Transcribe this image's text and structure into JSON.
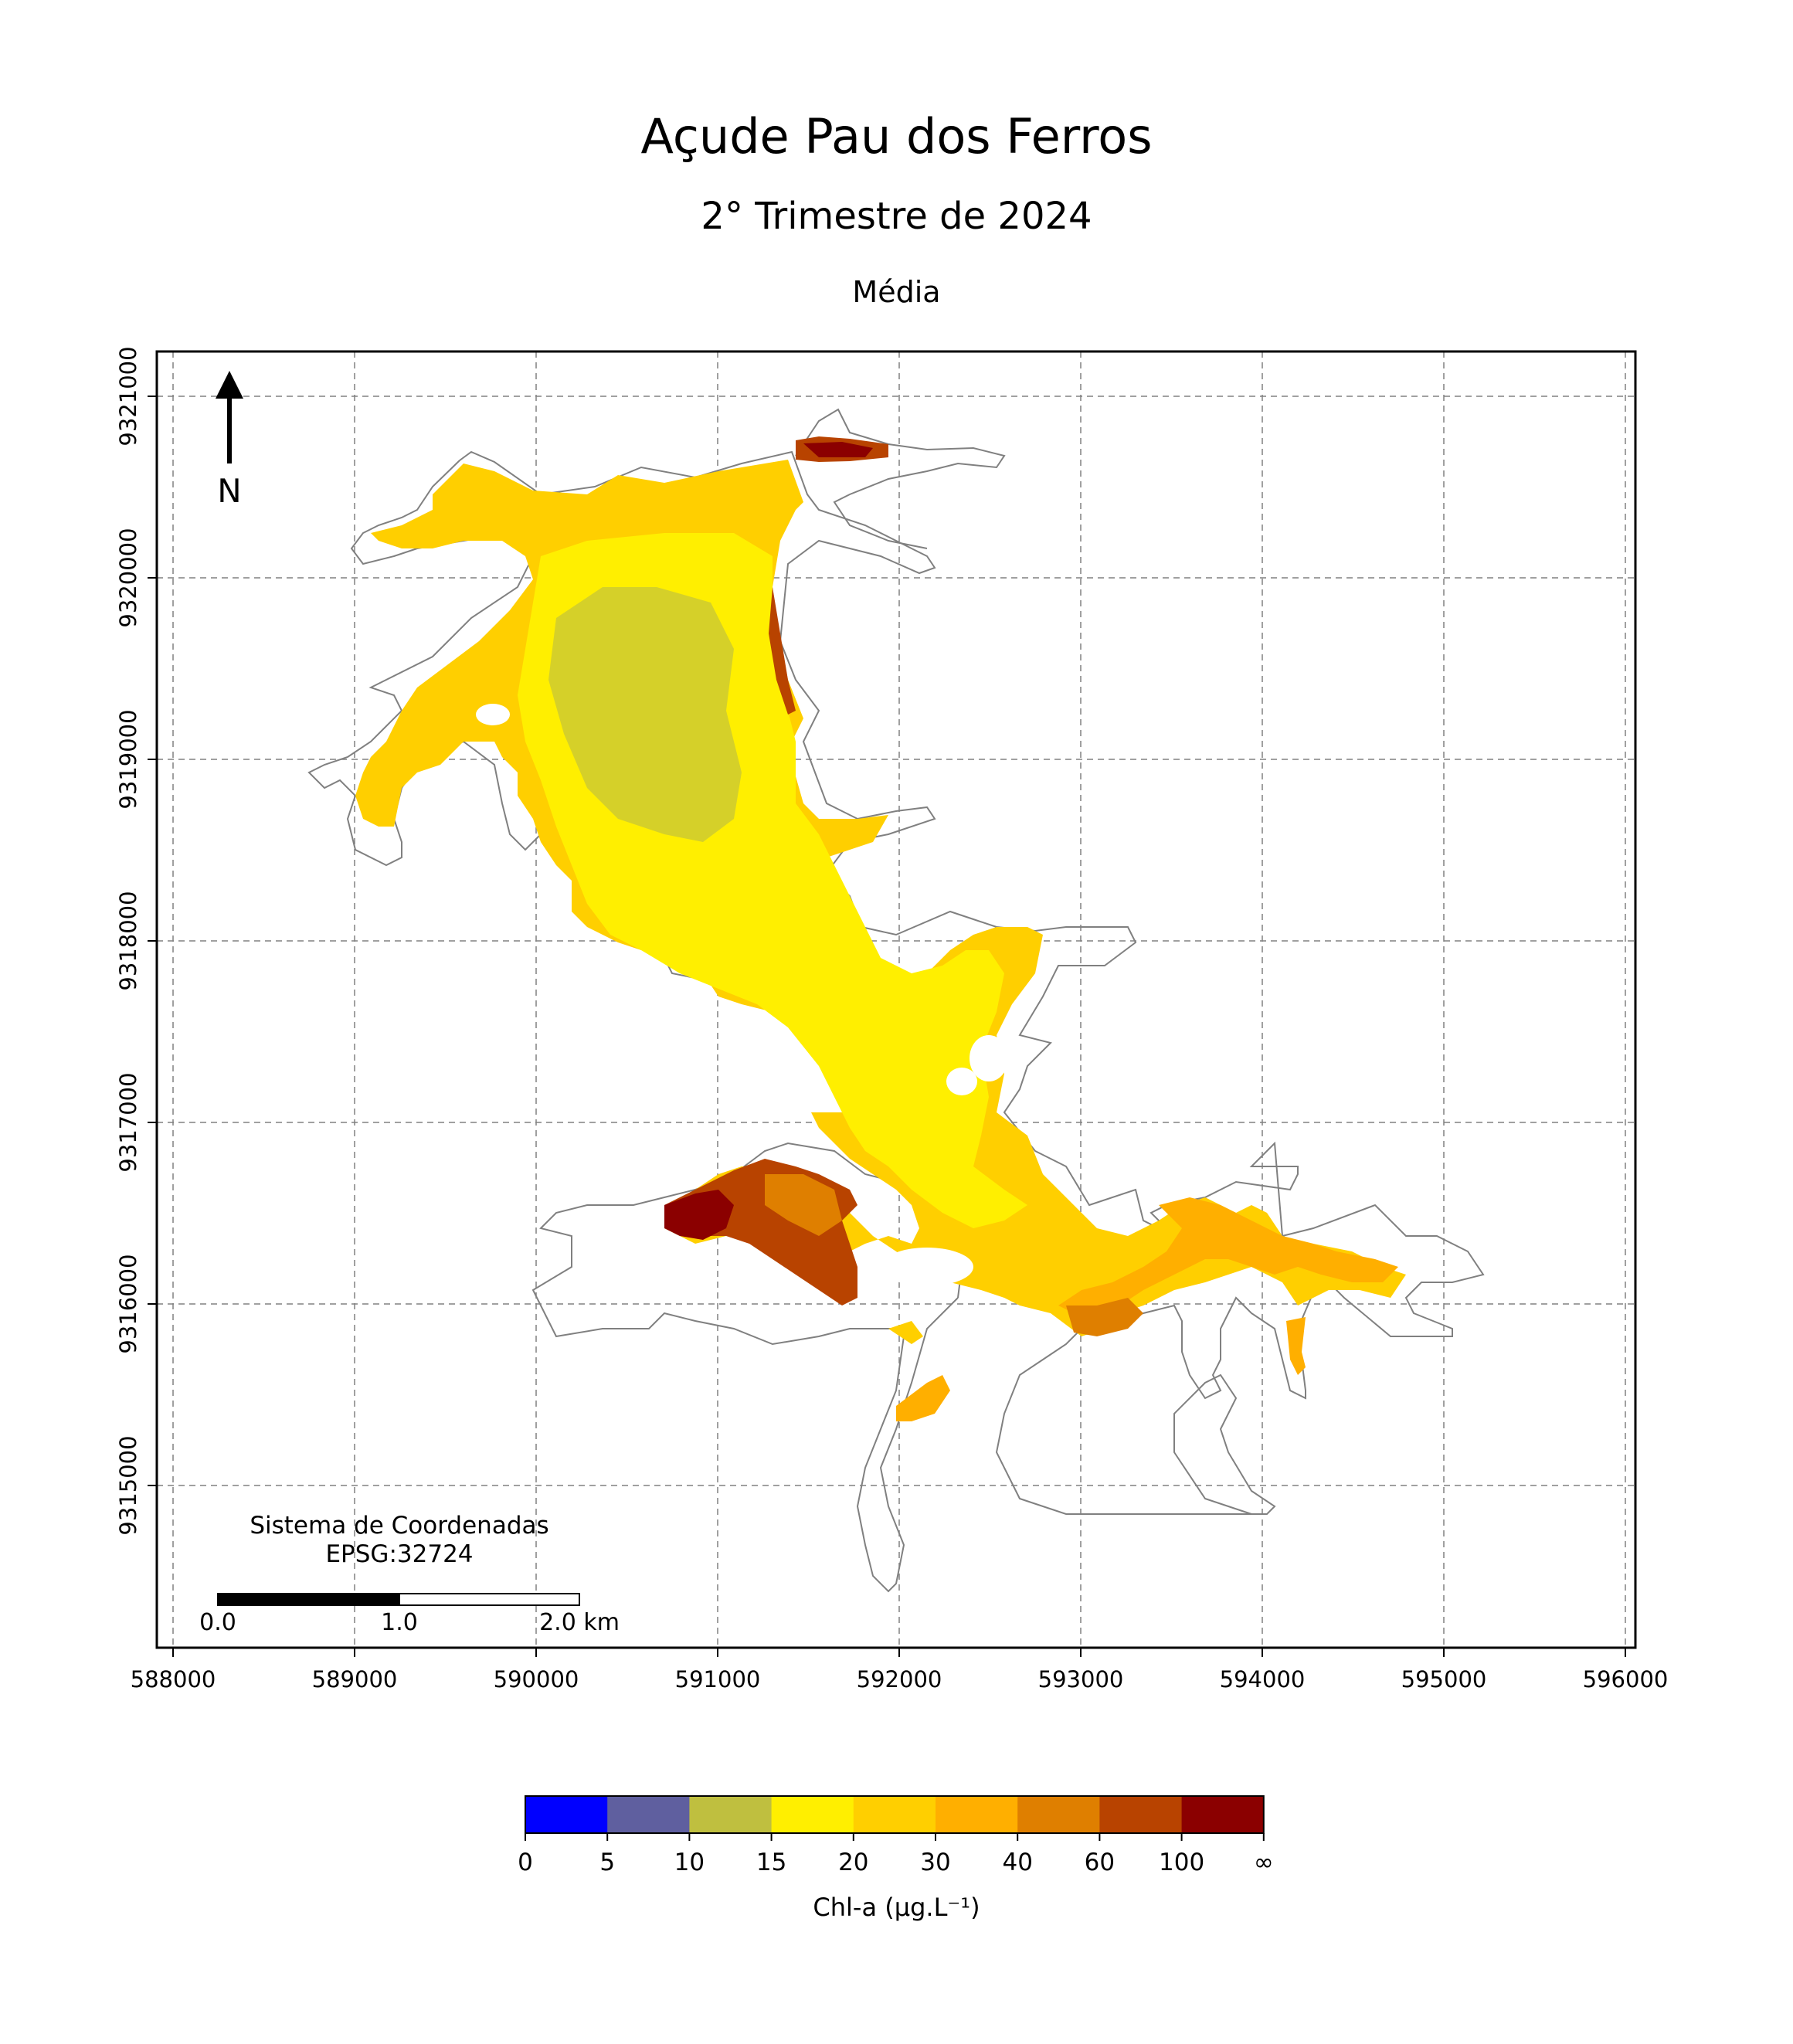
{
  "title": "Açude Pau dos Ferros",
  "subtitle": "2° Trimestre de 2024",
  "panel_title": "Média",
  "map": {
    "x_ticks": [
      "588000",
      "589000",
      "590000",
      "591000",
      "592000",
      "593000",
      "594000",
      "595000",
      "596000"
    ],
    "y_ticks": [
      "9321000",
      "9320000",
      "9319000",
      "9318000",
      "9317000",
      "9316000",
      "9315000"
    ],
    "north_label": "N",
    "crs_line1": "Sistema de Coordenadas",
    "crs_line2": "EPSG:32724",
    "scale_labels": [
      "0.0",
      "1.0",
      "2.0 km"
    ],
    "outline_color": "#808080",
    "grid": "dashed"
  },
  "colorbar": {
    "label": "Chl-a (μg.L⁻¹)",
    "tick_labels": [
      "0",
      "5",
      "10",
      "15",
      "20",
      "30",
      "40",
      "60",
      "100",
      "∞"
    ],
    "colors": [
      "#0000ff",
      "#5f5f9f",
      "#bfbf3f",
      "#ffef00",
      "#ffcf00",
      "#ffaf00",
      "#df7f00",
      "#b84300",
      "#8b0000"
    ]
  }
}
